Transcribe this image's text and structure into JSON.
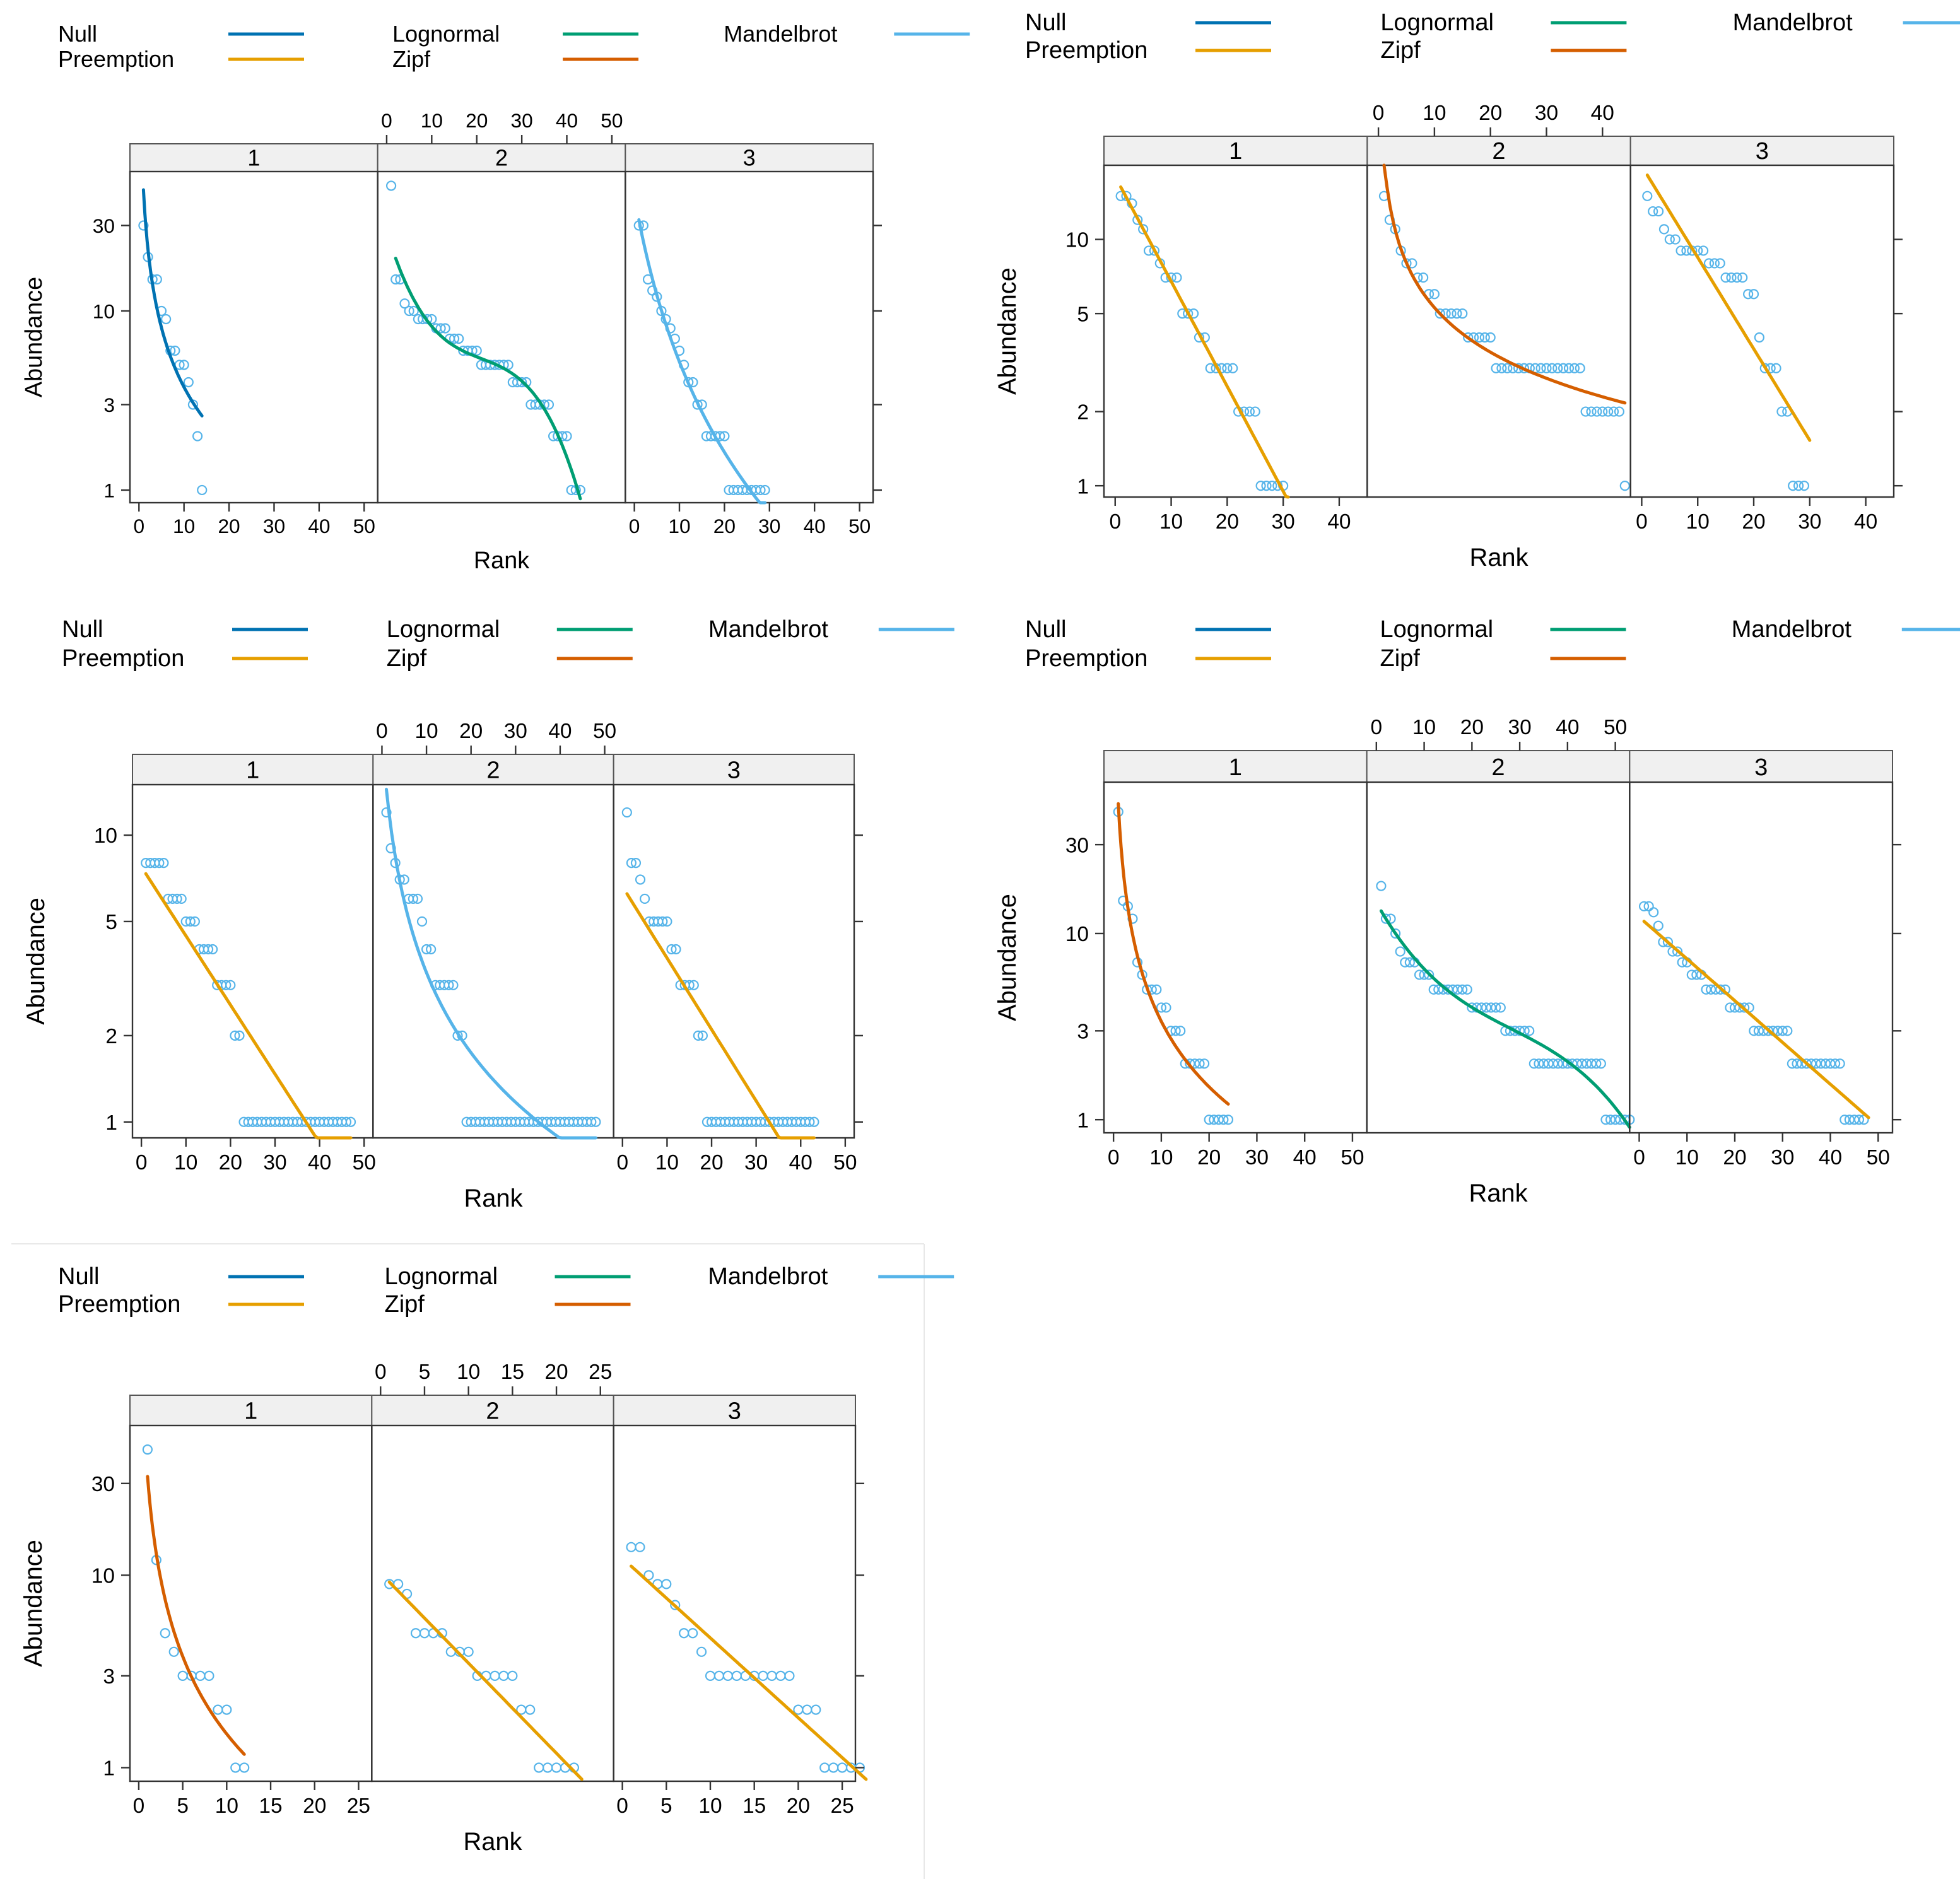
{
  "legend": {
    "items": [
      {
        "name": "Null",
        "color": "#0072B2"
      },
      {
        "name": "Preemption",
        "color": "#E69F00"
      },
      {
        "name": "Lognormal",
        "color": "#009E73"
      },
      {
        "name": "Zipf",
        "color": "#D55E00"
      },
      {
        "name": "Mandelbrot",
        "color": "#56B4E9"
      }
    ]
  },
  "chart_data": [
    {
      "type": "scatter",
      "id": "A",
      "xlabel": "Rank",
      "ylabel": "Abundance",
      "y_scale": "log",
      "xlim": [
        -2,
        53
      ],
      "ylim": [
        0.85,
        60
      ],
      "x_ticks": [
        0,
        10,
        20,
        30,
        40,
        50
      ],
      "y_ticks": [
        1,
        3,
        10,
        30
      ],
      "panels": [
        {
          "label": "1",
          "fit": "Null",
          "points": [
            30,
            20,
            15,
            15,
            10,
            9,
            6,
            6,
            5,
            5,
            4,
            3,
            2,
            1
          ]
        },
        {
          "label": "2",
          "fit": "Lognormal",
          "points": [
            50,
            15,
            15,
            11,
            10,
            10,
            9,
            9,
            9,
            9,
            8,
            8,
            8,
            7,
            7,
            7,
            6,
            6,
            6,
            6,
            5,
            5,
            5,
            5,
            5,
            5,
            5,
            4,
            4,
            4,
            4,
            3,
            3,
            3,
            3,
            3,
            2,
            2,
            2,
            2,
            1,
            1,
            1
          ]
        },
        {
          "label": "3",
          "fit": "Mandelbrot",
          "points": [
            30,
            30,
            15,
            13,
            12,
            10,
            9,
            8,
            7,
            6,
            5,
            4,
            4,
            3,
            3,
            2,
            2,
            2,
            2,
            2,
            1,
            1,
            1,
            1,
            1,
            1,
            1,
            1,
            1
          ]
        }
      ]
    },
    {
      "type": "scatter",
      "id": "B",
      "xlabel": "Rank",
      "ylabel": "Abundance",
      "y_scale": "log",
      "xlim": [
        -2,
        45
      ],
      "ylim": [
        0.9,
        20
      ],
      "x_ticks": [
        0,
        10,
        20,
        30,
        40
      ],
      "y_ticks": [
        1,
        2,
        5,
        10
      ],
      "panels": [
        {
          "label": "1",
          "fit": "Preemption",
          "points": [
            15,
            15,
            14,
            12,
            11,
            9,
            9,
            8,
            7,
            7,
            7,
            5,
            5,
            5,
            4,
            4,
            3,
            3,
            3,
            3,
            3,
            2,
            2,
            2,
            2,
            1,
            1,
            1,
            1,
            1
          ]
        },
        {
          "label": "2",
          "fit": "Zipf",
          "points": [
            15,
            12,
            11,
            9,
            8,
            8,
            7,
            7,
            6,
            6,
            5,
            5,
            5,
            5,
            5,
            4,
            4,
            4,
            4,
            4,
            3,
            3,
            3,
            3,
            3,
            3,
            3,
            3,
            3,
            3,
            3,
            3,
            3,
            3,
            3,
            3,
            2,
            2,
            2,
            2,
            2,
            2,
            2,
            1
          ]
        },
        {
          "label": "3",
          "fit": "Preemption",
          "points": [
            15,
            13,
            13,
            11,
            10,
            10,
            9,
            9,
            9,
            9,
            9,
            8,
            8,
            8,
            7,
            7,
            7,
            7,
            6,
            6,
            4,
            3,
            3,
            3,
            2,
            2,
            1,
            1,
            1
          ]
        }
      ]
    },
    {
      "type": "scatter",
      "id": "C",
      "xlabel": "Rank",
      "ylabel": "Abundance",
      "y_scale": "log",
      "xlim": [
        -2,
        52
      ],
      "ylim": [
        0.88,
        15
      ],
      "x_ticks": [
        0,
        10,
        20,
        30,
        40,
        50
      ],
      "y_ticks": [
        1,
        2,
        5,
        10
      ],
      "panels": [
        {
          "label": "1",
          "fit": "Preemption",
          "points": [
            8,
            8,
            8,
            8,
            8,
            6,
            6,
            6,
            6,
            5,
            5,
            5,
            4,
            4,
            4,
            4,
            3,
            3,
            3,
            3,
            2,
            2,
            1,
            1,
            1,
            1,
            1,
            1,
            1,
            1,
            1,
            1,
            1,
            1,
            1,
            1,
            1,
            1,
            1,
            1,
            1,
            1,
            1,
            1,
            1,
            1,
            1
          ]
        },
        {
          "label": "2",
          "fit": "Mandelbrot",
          "points": [
            12,
            9,
            8,
            7,
            7,
            6,
            6,
            6,
            5,
            4,
            4,
            3,
            3,
            3,
            3,
            3,
            2,
            2,
            1,
            1,
            1,
            1,
            1,
            1,
            1,
            1,
            1,
            1,
            1,
            1,
            1,
            1,
            1,
            1,
            1,
            1,
            1,
            1,
            1,
            1,
            1,
            1,
            1,
            1,
            1,
            1,
            1,
            1
          ]
        },
        {
          "label": "3",
          "fit": "Preemption",
          "points": [
            12,
            8,
            8,
            7,
            6,
            5,
            5,
            5,
            5,
            5,
            4,
            4,
            3,
            3,
            3,
            3,
            2,
            2,
            1,
            1,
            1,
            1,
            1,
            1,
            1,
            1,
            1,
            1,
            1,
            1,
            1,
            1,
            1,
            1,
            1,
            1,
            1,
            1,
            1,
            1,
            1,
            1,
            1
          ]
        }
      ]
    },
    {
      "type": "scatter",
      "id": "D",
      "xlabel": "Rank",
      "ylabel": "Abundance",
      "y_scale": "log",
      "xlim": [
        -2,
        53
      ],
      "ylim": [
        0.85,
        65
      ],
      "x_ticks": [
        0,
        10,
        20,
        30,
        40,
        50
      ],
      "y_ticks": [
        1,
        3,
        10,
        30
      ],
      "panels": [
        {
          "label": "1",
          "fit": "Zipf",
          "points": [
            45,
            15,
            14,
            12,
            7,
            6,
            5,
            5,
            5,
            4,
            4,
            3,
            3,
            3,
            2,
            2,
            2,
            2,
            2,
            1,
            1,
            1,
            1,
            1
          ]
        },
        {
          "label": "2",
          "fit": "Lognormal",
          "points": [
            18,
            12,
            12,
            10,
            8,
            7,
            7,
            7,
            6,
            6,
            6,
            5,
            5,
            5,
            5,
            5,
            5,
            5,
            5,
            4,
            4,
            4,
            4,
            4,
            4,
            4,
            3,
            3,
            3,
            3,
            3,
            3,
            2,
            2,
            2,
            2,
            2,
            2,
            2,
            2,
            2,
            2,
            2,
            2,
            2,
            2,
            2,
            1,
            1,
            1,
            1,
            1,
            1
          ]
        },
        {
          "label": "3",
          "fit": "Preemption",
          "points": [
            14,
            14,
            13,
            11,
            9,
            9,
            8,
            8,
            7,
            7,
            6,
            6,
            6,
            5,
            5,
            5,
            5,
            5,
            4,
            4,
            4,
            4,
            4,
            3,
            3,
            3,
            3,
            3,
            3,
            3,
            3,
            2,
            2,
            2,
            2,
            2,
            2,
            2,
            2,
            2,
            2,
            2,
            1,
            1,
            1,
            1,
            1
          ]
        }
      ]
    },
    {
      "type": "scatter",
      "id": "E",
      "xlabel": "Rank",
      "ylabel": "Abundance",
      "y_scale": "log",
      "xlim": [
        -1,
        26.5
      ],
      "ylim": [
        0.85,
        60
      ],
      "x_ticks": [
        0,
        5,
        10,
        15,
        20,
        25
      ],
      "y_ticks": [
        1,
        3,
        10,
        30
      ],
      "panels": [
        {
          "label": "1",
          "fit": "Zipf",
          "points": [
            45,
            12,
            5,
            4,
            3,
            3,
            3,
            3,
            2,
            2,
            1,
            1
          ]
        },
        {
          "label": "2",
          "fit": "Preemption",
          "points": [
            9,
            9,
            8,
            5,
            5,
            5,
            5,
            4,
            4,
            4,
            3,
            3,
            3,
            3,
            3,
            2,
            2,
            1,
            1,
            1,
            1,
            1
          ]
        },
        {
          "label": "3",
          "fit": "Preemption",
          "points": [
            14,
            14,
            10,
            9,
            9,
            7,
            5,
            5,
            4,
            3,
            3,
            3,
            3,
            3,
            3,
            3,
            3,
            3,
            3,
            2,
            2,
            2,
            1,
            1,
            1,
            1,
            1
          ]
        }
      ]
    }
  ]
}
